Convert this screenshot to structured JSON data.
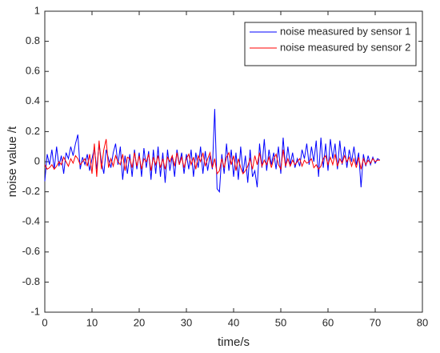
{
  "chart_data": {
    "type": "line",
    "xlabel": "time/s",
    "ylabel": "noise value /t",
    "x": [
      0,
      0.5,
      1,
      1.5,
      2,
      2.5,
      3,
      3.5,
      4,
      4.5,
      5,
      5.5,
      6,
      6.5,
      7,
      7.5,
      8,
      8.5,
      9,
      9.5,
      10,
      10.5,
      11,
      11.5,
      12,
      12.5,
      13,
      13.5,
      14,
      14.5,
      15,
      15.5,
      16,
      16.5,
      17,
      17.5,
      18,
      18.5,
      19,
      19.5,
      20,
      20.5,
      21,
      21.5,
      22,
      22.5,
      23,
      23.5,
      24,
      24.5,
      25,
      25.5,
      26,
      26.5,
      27,
      27.5,
      28,
      28.5,
      29,
      29.5,
      30,
      30.5,
      31,
      31.5,
      32,
      32.5,
      33,
      33.5,
      34,
      34.5,
      35,
      35.5,
      36,
      36.5,
      37,
      37.5,
      38,
      38.5,
      39,
      39.5,
      40,
      40.5,
      41,
      41.5,
      42,
      42.5,
      43,
      43.5,
      44,
      44.5,
      45,
      45.5,
      46,
      46.5,
      47,
      47.5,
      48,
      48.5,
      49,
      49.5,
      50,
      50.5,
      51,
      51.5,
      52,
      52.5,
      53,
      53.5,
      54,
      54.5,
      55,
      55.5,
      56,
      56.5,
      57,
      57.5,
      58,
      58.5,
      59,
      59.5,
      60,
      60.5,
      61,
      61.5,
      62,
      62.5,
      63,
      63.5,
      64,
      64.5,
      65,
      65.5,
      66,
      66.5,
      67,
      67.5,
      68,
      68.5,
      69,
      69.5,
      70,
      70.5,
      71
    ],
    "series": [
      {
        "name": "noise measured by sensor 1",
        "color": "#0000ff",
        "values": [
          -0.13,
          0.05,
          -0.02,
          0.08,
          -0.05,
          0.1,
          -0.03,
          0.04,
          -0.08,
          0.06,
          0.02,
          0.1,
          0.04,
          0.12,
          0.18,
          -0.05,
          0.03,
          -0.02,
          0.05,
          -0.06,
          0.02,
          0.09,
          -0.05,
          0.12,
          0.0,
          -0.08,
          0.08,
          0.02,
          -0.04,
          0.06,
          0.12,
          -0.02,
          0.1,
          -0.12,
          0.04,
          -0.08,
          0.05,
          -0.1,
          0.08,
          -0.05,
          0.06,
          -0.1,
          0.09,
          -0.04,
          0.07,
          -0.12,
          0.08,
          -0.08,
          0.1,
          -0.1,
          0.06,
          -0.14,
          0.08,
          -0.06,
          0.04,
          -0.1,
          0.08,
          -0.02,
          0.06,
          -0.08,
          0.05,
          -0.05,
          0.08,
          -0.1,
          0.06,
          -0.04,
          0.1,
          -0.08,
          0.07,
          -0.06,
          0.04,
          -0.05,
          0.35,
          -0.18,
          -0.2,
          0.05,
          -0.08,
          0.12,
          -0.06,
          0.08,
          -0.1,
          0.06,
          -0.12,
          0.1,
          -0.08,
          0.04,
          -0.14,
          0.08,
          -0.1,
          -0.06,
          -0.17,
          0.12,
          -0.04,
          0.15,
          -0.06,
          0.08,
          -0.02,
          0.06,
          -0.05,
          0.1,
          -0.08,
          0.16,
          -0.04,
          0.1,
          -0.02,
          0.06,
          -0.04,
          0.02,
          -0.03,
          0.08,
          0.02,
          0.12,
          -0.02,
          0.1,
          0.0,
          0.14,
          -0.1,
          0.16,
          -0.04,
          0.12,
          -0.06,
          0.15,
          0.02,
          0.12,
          -0.05,
          0.14,
          -0.02,
          0.1,
          -0.04,
          0.08,
          0.0,
          0.1,
          -0.02,
          0.06,
          -0.17,
          0.05,
          -0.03,
          0.04,
          -0.02,
          0.03,
          -0.01,
          0.02,
          0.01
        ]
      },
      {
        "name": "noise measured by sensor 2",
        "color": "#ff0000",
        "values": [
          -0.02,
          -0.05,
          -0.04,
          -0.02,
          -0.05,
          -0.03,
          0.0,
          -0.02,
          0.03,
          0.0,
          -0.03,
          0.02,
          -0.01,
          0.04,
          0.02,
          -0.02,
          0.0,
          0.02,
          -0.03,
          0.05,
          -0.08,
          0.12,
          -0.1,
          0.14,
          -0.05,
          0.08,
          0.15,
          -0.04,
          0.02,
          -0.03,
          0.04,
          0.0,
          -0.02,
          0.05,
          -0.06,
          0.03,
          0.02,
          -0.04,
          0.06,
          -0.03,
          0.04,
          -0.05,
          0.02,
          0.0,
          0.05,
          -0.06,
          0.03,
          -0.02,
          0.04,
          -0.04,
          0.02,
          -0.05,
          0.03,
          0.0,
          0.04,
          -0.03,
          0.06,
          -0.02,
          0.03,
          -0.04,
          0.02,
          0.05,
          -0.02,
          0.03,
          -0.05,
          0.04,
          0.0,
          0.06,
          -0.03,
          0.02,
          0.06,
          -0.04,
          0.02,
          -0.08,
          -0.06,
          0.02,
          -0.04,
          0.03,
          0.06,
          -0.02,
          0.04,
          -0.06,
          0.02,
          -0.04,
          -0.08,
          -0.06,
          -0.03,
          0.02,
          -0.05,
          0.04,
          -0.02,
          0.06,
          -0.03,
          0.01,
          -0.02,
          0.03,
          -0.04,
          0.02,
          0.05,
          -0.02,
          -0.05,
          0.08,
          -0.03,
          0.02,
          -0.03,
          0.01,
          -0.02,
          0.0,
          0.02,
          -0.03,
          0.01,
          -0.01,
          0.0,
          0.02,
          -0.04,
          -0.02,
          -0.05,
          -0.03,
          0.02,
          0.04,
          -0.02,
          0.03,
          -0.02,
          0.05,
          -0.03,
          0.02,
          -0.01,
          0.04,
          0.0,
          0.03,
          -0.03,
          0.02,
          -0.04,
          0.03,
          -0.05,
          0.02,
          -0.02,
          0.01,
          -0.01,
          0.02,
          0.0,
          0.01,
          0.01
        ]
      }
    ],
    "xlim": [
      0,
      80
    ],
    "xticks": [
      0,
      10,
      20,
      30,
      40,
      50,
      60,
      70,
      80
    ],
    "ylim": [
      -1,
      1
    ],
    "yticks": [
      -1,
      -0.8,
      -0.6,
      -0.4,
      -0.2,
      0,
      0.2,
      0.4,
      0.6,
      0.8,
      1
    ],
    "legend": "upper right"
  }
}
